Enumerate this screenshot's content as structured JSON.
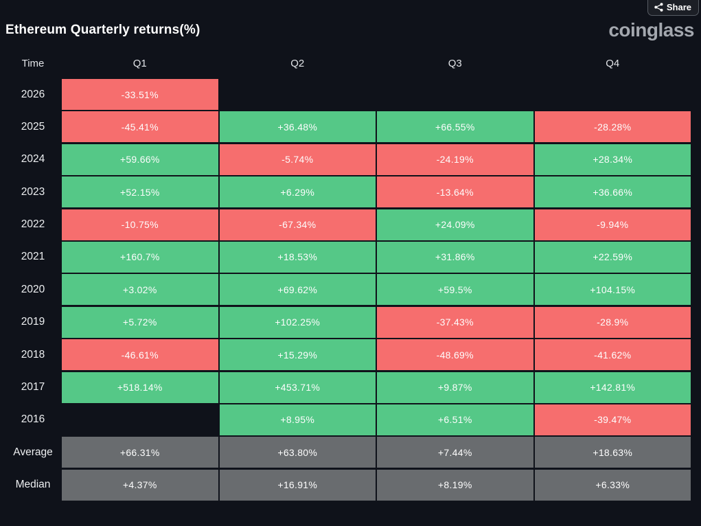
{
  "header": {
    "title": "Ethereum Quarterly returns(%)",
    "logo_text": "coinglass",
    "share_label": "Share"
  },
  "colors": {
    "background": "#0f121a",
    "positive": "#55c887",
    "negative": "#f66e6e",
    "summary": "#696c6f"
  },
  "chart_data": {
    "type": "table",
    "title": "Ethereum Quarterly returns(%)",
    "columns": [
      "Time",
      "Q1",
      "Q2",
      "Q3",
      "Q4"
    ],
    "rows": [
      {
        "label": "2026",
        "summary": false,
        "values": [
          "-33.51%",
          null,
          null,
          null
        ]
      },
      {
        "label": "2025",
        "summary": false,
        "values": [
          "-45.41%",
          "+36.48%",
          "+66.55%",
          "-28.28%"
        ]
      },
      {
        "label": "2024",
        "summary": false,
        "values": [
          "+59.66%",
          "-5.74%",
          "-24.19%",
          "+28.34%"
        ]
      },
      {
        "label": "2023",
        "summary": false,
        "values": [
          "+52.15%",
          "+6.29%",
          "-13.64%",
          "+36.66%"
        ]
      },
      {
        "label": "2022",
        "summary": false,
        "values": [
          "-10.75%",
          "-67.34%",
          "+24.09%",
          "-9.94%"
        ]
      },
      {
        "label": "2021",
        "summary": false,
        "values": [
          "+160.7%",
          "+18.53%",
          "+31.86%",
          "+22.59%"
        ]
      },
      {
        "label": "2020",
        "summary": false,
        "values": [
          "+3.02%",
          "+69.62%",
          "+59.5%",
          "+104.15%"
        ]
      },
      {
        "label": "2019",
        "summary": false,
        "values": [
          "+5.72%",
          "+102.25%",
          "-37.43%",
          "-28.9%"
        ]
      },
      {
        "label": "2018",
        "summary": false,
        "values": [
          "-46.61%",
          "+15.29%",
          "-48.69%",
          "-41.62%"
        ]
      },
      {
        "label": "2017",
        "summary": false,
        "values": [
          "+518.14%",
          "+453.71%",
          "+9.87%",
          "+142.81%"
        ]
      },
      {
        "label": "2016",
        "summary": false,
        "values": [
          null,
          "+8.95%",
          "+6.51%",
          "-39.47%"
        ]
      },
      {
        "label": "Average",
        "summary": true,
        "values": [
          "+66.31%",
          "+63.80%",
          "+7.44%",
          "+18.63%"
        ]
      },
      {
        "label": "Median",
        "summary": true,
        "values": [
          "+4.37%",
          "+16.91%",
          "+8.19%",
          "+6.33%"
        ]
      }
    ],
    "color_coding": {
      "positive": "green",
      "negative": "red",
      "summary_rows": "gray"
    }
  }
}
